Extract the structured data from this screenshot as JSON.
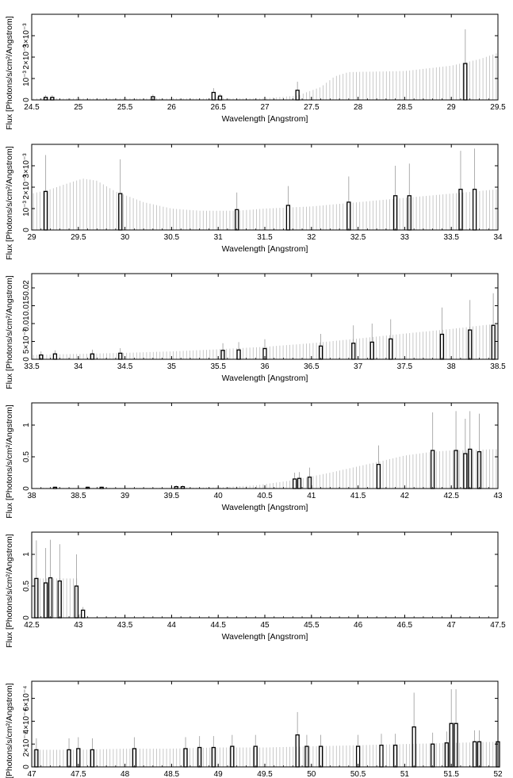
{
  "colors": {
    "background": "#ffffff",
    "axis": "#000000",
    "model_stem": "#bbbbbb",
    "data_bar": "#000000",
    "error_bar": "#999999"
  },
  "chart_data": [
    {
      "type": "bar",
      "xlabel": "Wavelength [Angstrom]",
      "ylabel": "Flux [Photons/s/cm²/Angstrom]",
      "xlim": [
        24.5,
        29.5
      ],
      "ylim": [
        0,
        0.004
      ],
      "x_ticks": [
        24.5,
        25,
        25.5,
        26,
        26.5,
        27,
        27.5,
        28,
        28.5,
        29,
        29.5
      ],
      "x_tick_labels": [
        "24.5",
        "25",
        "25.5",
        "26",
        "26.5",
        "27",
        "27.5",
        "28",
        "28.5",
        "29",
        "29.5"
      ],
      "y_ticks": [
        0,
        0.001,
        0.002,
        0.003
      ],
      "y_tick_labels": [
        "0",
        "10⁻³",
        "2×10⁻³",
        "3×10⁻³"
      ],
      "model_curve": [
        [
          24.5,
          8e-05
        ],
        [
          27.0,
          8e-05
        ],
        [
          27.35,
          0.0002
        ],
        [
          27.6,
          0.0006
        ],
        [
          27.75,
          0.0011
        ],
        [
          27.9,
          0.0013
        ],
        [
          28.5,
          0.00135
        ],
        [
          29.0,
          0.0016
        ],
        [
          29.3,
          0.0019
        ],
        [
          29.5,
          0.0022
        ]
      ],
      "bars": [
        {
          "x": 24.65,
          "y": 0.00012,
          "err": 0.0001
        },
        {
          "x": 24.72,
          "y": 0.00012,
          "err": 0.0001
        },
        {
          "x": 25.8,
          "y": 0.00015,
          "err": 0.0001
        },
        {
          "x": 26.45,
          "y": 0.00035,
          "err": 0.0002
        },
        {
          "x": 26.52,
          "y": 0.00018,
          "err": 0.0001
        },
        {
          "x": 27.35,
          "y": 0.00045,
          "err": 0.0004
        },
        {
          "x": 29.15,
          "y": 0.0017,
          "err": 0.0016
        }
      ]
    },
    {
      "type": "bar",
      "xlabel": "Wavelength [Angstrom]",
      "ylabel": "Flux [Photons/s/cm²/Angstrom]",
      "xlim": [
        29,
        34
      ],
      "ylim": [
        0,
        0.004
      ],
      "x_ticks": [
        29,
        29.5,
        30,
        30.5,
        31,
        31.5,
        32,
        32.5,
        33,
        33.5,
        34
      ],
      "x_tick_labels": [
        "29",
        "29.5",
        "30",
        "30.5",
        "31",
        "31.5",
        "32",
        "32.5",
        "33",
        "33.5",
        "34"
      ],
      "y_ticks": [
        0,
        0.001,
        0.002,
        0.003
      ],
      "y_tick_labels": [
        "0",
        "10⁻³",
        "2×10⁻³",
        "3×10⁻³"
      ],
      "model_curve": [
        [
          29.0,
          0.0017
        ],
        [
          29.2,
          0.0019
        ],
        [
          29.4,
          0.0022
        ],
        [
          29.55,
          0.0024
        ],
        [
          29.7,
          0.0023
        ],
        [
          29.9,
          0.0018
        ],
        [
          30.2,
          0.0013
        ],
        [
          30.5,
          0.001
        ],
        [
          30.8,
          0.0009
        ],
        [
          31.2,
          0.0009
        ],
        [
          31.5,
          0.001
        ],
        [
          32.0,
          0.0011
        ],
        [
          32.5,
          0.0013
        ],
        [
          33.0,
          0.0015
        ],
        [
          33.5,
          0.0017
        ],
        [
          34.0,
          0.0019
        ]
      ],
      "bars": [
        {
          "x": 29.15,
          "y": 0.0018,
          "err": 0.0017
        },
        {
          "x": 29.95,
          "y": 0.0017,
          "err": 0.0016
        },
        {
          "x": 31.2,
          "y": 0.00095,
          "err": 0.0008
        },
        {
          "x": 31.75,
          "y": 0.00115,
          "err": 0.0009
        },
        {
          "x": 32.4,
          "y": 0.0013,
          "err": 0.0012
        },
        {
          "x": 32.9,
          "y": 0.0016,
          "err": 0.0014
        },
        {
          "x": 33.05,
          "y": 0.0016,
          "err": 0.0015
        },
        {
          "x": 33.6,
          "y": 0.0019,
          "err": 0.0018
        },
        {
          "x": 33.75,
          "y": 0.0019,
          "err": 0.0019
        }
      ]
    },
    {
      "type": "bar",
      "xlabel": "Wavelength [Angstrom]",
      "ylabel": "Flux [Photons/s/cm²/Angstrom]",
      "xlim": [
        33.5,
        38.5
      ],
      "ylim": [
        0,
        0.024
      ],
      "x_ticks": [
        33.5,
        34,
        34.5,
        35,
        35.5,
        36,
        36.5,
        37,
        37.5,
        38,
        38.5
      ],
      "x_tick_labels": [
        "33.5",
        "34",
        "34.5",
        "35",
        "35.5",
        "36",
        "36.5",
        "37",
        "37.5",
        "38",
        "38.5"
      ],
      "y_ticks": [
        0,
        0.005,
        0.01,
        0.015,
        0.02
      ],
      "y_tick_labels": [
        "0",
        "5×10⁻³",
        "0.01",
        "0.015",
        "0.02"
      ],
      "model_curve": [
        [
          33.5,
          0.0012
        ],
        [
          34.0,
          0.0015
        ],
        [
          34.5,
          0.0018
        ],
        [
          35.0,
          0.0022
        ],
        [
          35.5,
          0.0028
        ],
        [
          36.0,
          0.0035
        ],
        [
          36.5,
          0.0045
        ],
        [
          37.0,
          0.0058
        ],
        [
          37.5,
          0.0072
        ],
        [
          38.0,
          0.0085
        ],
        [
          38.5,
          0.01
        ]
      ],
      "bars": [
        {
          "x": 33.6,
          "y": 0.0012,
          "err": 0.001
        },
        {
          "x": 33.75,
          "y": 0.0015,
          "err": 0.001
        },
        {
          "x": 34.15,
          "y": 0.0015,
          "err": 0.0012
        },
        {
          "x": 34.45,
          "y": 0.0017,
          "err": 0.0014
        },
        {
          "x": 35.55,
          "y": 0.0025,
          "err": 0.002
        },
        {
          "x": 35.72,
          "y": 0.0026,
          "err": 0.0022
        },
        {
          "x": 36.0,
          "y": 0.003,
          "err": 0.0026
        },
        {
          "x": 36.6,
          "y": 0.0037,
          "err": 0.0034
        },
        {
          "x": 36.95,
          "y": 0.0045,
          "err": 0.005
        },
        {
          "x": 37.15,
          "y": 0.0048,
          "err": 0.0052
        },
        {
          "x": 37.35,
          "y": 0.0057,
          "err": 0.0055
        },
        {
          "x": 37.9,
          "y": 0.007,
          "err": 0.0075
        },
        {
          "x": 38.2,
          "y": 0.0082,
          "err": 0.0084
        },
        {
          "x": 38.45,
          "y": 0.0095,
          "err": 0.009
        }
      ]
    },
    {
      "type": "bar",
      "xlabel": "Wavelength [Angstrom]",
      "ylabel": "Flux [Photons/s/cm²/Angstrom]",
      "xlim": [
        38,
        43
      ],
      "ylim": [
        0,
        1.35
      ],
      "x_ticks": [
        38,
        38.5,
        39,
        39.5,
        40,
        40.5,
        41,
        41.5,
        42,
        42.5,
        43
      ],
      "x_tick_labels": [
        "38",
        "38.5",
        "39",
        "39.5",
        "40",
        "40.5",
        "41",
        "41.5",
        "42",
        "42.5",
        "43"
      ],
      "y_ticks": [
        0,
        0.5,
        1
      ],
      "y_tick_labels": [
        "0",
        "0.5",
        "1"
      ],
      "model_curve": [
        [
          38.0,
          0.01
        ],
        [
          39.5,
          0.01
        ],
        [
          40.0,
          0.02
        ],
        [
          40.4,
          0.05
        ],
        [
          40.8,
          0.13
        ],
        [
          41.2,
          0.25
        ],
        [
          41.5,
          0.35
        ],
        [
          41.8,
          0.45
        ],
        [
          42.0,
          0.52
        ],
        [
          42.3,
          0.58
        ],
        [
          42.5,
          0.6
        ],
        [
          43.0,
          0.62
        ]
      ],
      "bars": [
        {
          "x": 38.25,
          "y": 0.02,
          "err": 0.01
        },
        {
          "x": 38.6,
          "y": 0.02,
          "err": 0.01
        },
        {
          "x": 38.75,
          "y": 0.02,
          "err": 0.01
        },
        {
          "x": 39.55,
          "y": 0.03,
          "err": 0.02
        },
        {
          "x": 39.62,
          "y": 0.03,
          "err": 0.02
        },
        {
          "x": 40.82,
          "y": 0.15,
          "err": 0.1
        },
        {
          "x": 40.87,
          "y": 0.16,
          "err": 0.1
        },
        {
          "x": 40.98,
          "y": 0.18,
          "err": 0.15
        },
        {
          "x": 41.72,
          "y": 0.38,
          "err": 0.3
        },
        {
          "x": 42.3,
          "y": 0.6,
          "err": 0.6
        },
        {
          "x": 42.55,
          "y": 0.6,
          "err": 0.62
        },
        {
          "x": 42.65,
          "y": 0.55,
          "err": 0.55
        },
        {
          "x": 42.7,
          "y": 0.62,
          "err": 0.6
        },
        {
          "x": 42.8,
          "y": 0.58,
          "err": 0.6
        }
      ]
    },
    {
      "type": "bar",
      "xlabel": "Wavelength [Angstrom]",
      "ylabel": "Flux [Photons/s/cm²/Angstrom]",
      "xlim": [
        42.5,
        47.5
      ],
      "ylim": [
        0,
        1.35
      ],
      "x_ticks": [
        42.5,
        43,
        43.5,
        44,
        44.5,
        45,
        45.5,
        46,
        46.5,
        47,
        47.5
      ],
      "x_tick_labels": [
        "42.5",
        "43",
        "43.5",
        "44",
        "44.5",
        "45",
        "45.5",
        "46",
        "46.5",
        "47",
        "47.5"
      ],
      "y_ticks": [
        0,
        0.5,
        1
      ],
      "y_tick_labels": [
        "0",
        "0.5",
        "1"
      ],
      "model_curve": [
        [
          42.5,
          0.62
        ],
        [
          43.0,
          0.62
        ],
        [
          43.02,
          0.0
        ],
        [
          47.5,
          0.0
        ]
      ],
      "bars": [
        {
          "x": 42.55,
          "y": 0.62,
          "err": 0.6
        },
        {
          "x": 42.65,
          "y": 0.55,
          "err": 0.55
        },
        {
          "x": 42.7,
          "y": 0.63,
          "err": 0.6
        },
        {
          "x": 42.8,
          "y": 0.58,
          "err": 0.58
        },
        {
          "x": 42.98,
          "y": 0.5,
          "err": 0.5
        },
        {
          "x": 43.05,
          "y": 0.12,
          "err": 0.05
        }
      ]
    },
    {
      "type": "bar",
      "xlabel": "Wavelength [Angstrom]",
      "ylabel": "Flux [Photons/s/cm²/Angstrom]",
      "xlim": [
        47,
        52
      ],
      "ylim": [
        0,
        0.00075
      ],
      "x_ticks": [
        47,
        47.5,
        48,
        48.5,
        49,
        49.5,
        50,
        50.5,
        51,
        51.5,
        52
      ],
      "x_tick_labels": [
        "47",
        "47.5",
        "48",
        "48.5",
        "49",
        "49.5",
        "50",
        "50.5",
        "51",
        "51.5",
        "52"
      ],
      "y_ticks": [
        0,
        0.0002,
        0.0004,
        0.0006
      ],
      "y_tick_labels": [
        "0",
        "2×10⁻⁴",
        "4×10⁻⁴",
        "6×10⁻⁴"
      ],
      "model_curve": [
        [
          47.0,
          0.00015
        ],
        [
          47.5,
          0.00015
        ],
        [
          48.0,
          0.00016
        ],
        [
          48.5,
          0.00016
        ],
        [
          49.0,
          0.00017
        ],
        [
          49.5,
          0.00017
        ],
        [
          50.0,
          0.00018
        ],
        [
          50.5,
          0.00019
        ],
        [
          51.0,
          0.0002
        ],
        [
          51.5,
          0.00021
        ],
        [
          52.0,
          0.00022
        ]
      ],
      "bars": [
        {
          "x": 47.05,
          "y": 0.00015,
          "err": 0.0001
        },
        {
          "x": 47.4,
          "y": 0.00015,
          "err": 0.0001
        },
        {
          "x": 47.5,
          "y": 0.00016,
          "err": 0.0001
        },
        {
          "x": 47.65,
          "y": 0.00015,
          "err": 0.0001
        },
        {
          "x": 48.1,
          "y": 0.00016,
          "err": 0.0001
        },
        {
          "x": 48.65,
          "y": 0.00016,
          "err": 0.0001
        },
        {
          "x": 48.8,
          "y": 0.00017,
          "err": 0.0001
        },
        {
          "x": 48.95,
          "y": 0.00017,
          "err": 0.0001
        },
        {
          "x": 49.15,
          "y": 0.00018,
          "err": 0.0001
        },
        {
          "x": 49.4,
          "y": 0.00018,
          "err": 0.0001
        },
        {
          "x": 49.85,
          "y": 0.00028,
          "err": 0.0002
        },
        {
          "x": 49.95,
          "y": 0.00018,
          "err": 0.0001
        },
        {
          "x": 50.1,
          "y": 0.00018,
          "err": 0.0001
        },
        {
          "x": 50.5,
          "y": 0.00018,
          "err": 0.0001
        },
        {
          "x": 50.75,
          "y": 0.00019,
          "err": 0.0001
        },
        {
          "x": 50.9,
          "y": 0.00019,
          "err": 0.0001
        },
        {
          "x": 51.1,
          "y": 0.00035,
          "err": 0.0003
        },
        {
          "x": 51.3,
          "y": 0.0002,
          "err": 0.0001
        },
        {
          "x": 51.45,
          "y": 0.00021,
          "err": 0.0001
        },
        {
          "x": 51.5,
          "y": 0.00038,
          "err": 0.0003
        },
        {
          "x": 51.55,
          "y": 0.00038,
          "err": 0.0003
        },
        {
          "x": 51.75,
          "y": 0.00022,
          "err": 0.0001
        },
        {
          "x": 51.8,
          "y": 0.00022,
          "err": 0.0001
        },
        {
          "x": 52.0,
          "y": 0.00022,
          "err": 0.0001
        }
      ]
    }
  ]
}
